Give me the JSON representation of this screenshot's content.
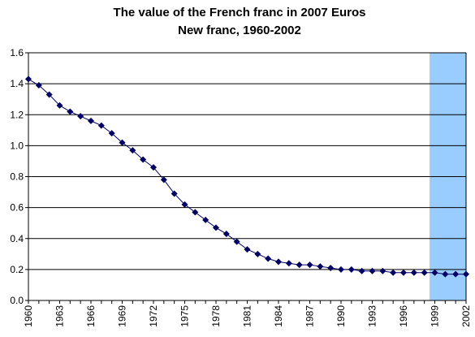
{
  "chart_data": {
    "type": "line",
    "title": "The value of the French franc in 2007 Euros",
    "subtitle": "New franc, 1960-2002",
    "xlabel": "",
    "ylabel": "",
    "ylim": [
      0,
      1.6
    ],
    "y_ticks": [
      "0.0",
      "0.2",
      "0.4",
      "0.6",
      "0.8",
      "1.0",
      "1.2",
      "1.4",
      "1.6"
    ],
    "x_ticks": [
      "1960",
      "1963",
      "1966",
      "1969",
      "1972",
      "1975",
      "1978",
      "1981",
      "1984",
      "1987",
      "1990",
      "1993",
      "1996",
      "1999",
      "2002"
    ],
    "grid": true,
    "legend": "none",
    "highlight_range": [
      1999,
      2002
    ],
    "colors": {
      "series": "#000066",
      "highlight": "#99ccff",
      "grid": "#000000"
    },
    "x": [
      1960,
      1961,
      1962,
      1963,
      1964,
      1965,
      1966,
      1967,
      1968,
      1969,
      1970,
      1971,
      1972,
      1973,
      1974,
      1975,
      1976,
      1977,
      1978,
      1979,
      1980,
      1981,
      1982,
      1983,
      1984,
      1985,
      1986,
      1987,
      1988,
      1989,
      1990,
      1991,
      1992,
      1993,
      1994,
      1995,
      1996,
      1997,
      1998,
      1999,
      2000,
      2001,
      2002
    ],
    "series": [
      {
        "values": [
          1.43,
          1.39,
          1.33,
          1.26,
          1.22,
          1.19,
          1.16,
          1.13,
          1.08,
          1.02,
          0.97,
          0.91,
          0.86,
          0.78,
          0.69,
          0.62,
          0.57,
          0.52,
          0.47,
          0.43,
          0.38,
          0.33,
          0.3,
          0.27,
          0.25,
          0.24,
          0.23,
          0.23,
          0.22,
          0.21,
          0.2,
          0.2,
          0.19,
          0.19,
          0.19,
          0.18,
          0.18,
          0.18,
          0.18,
          0.18,
          0.17,
          0.17,
          0.17
        ]
      }
    ]
  }
}
